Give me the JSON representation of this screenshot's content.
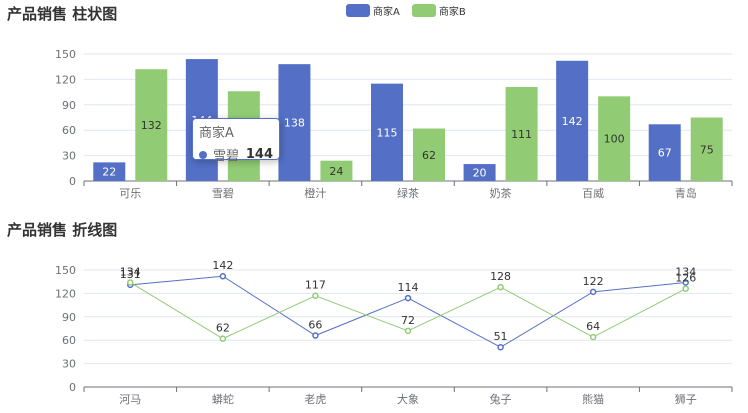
{
  "colors": {
    "seriesA": "#5470c6",
    "seriesB": "#91cc75",
    "axis": "#6e7079",
    "grid": "#e0e6f1",
    "text": "#333333"
  },
  "legend": [
    {
      "name": "商家A",
      "color": "#5470c6"
    },
    {
      "name": "商家B",
      "color": "#91cc75"
    }
  ],
  "tooltip": {
    "series": "商家A",
    "category": "雪碧",
    "value": "144"
  },
  "chart_data": [
    {
      "type": "bar",
      "title": "产品销售 柱状图",
      "categories": [
        "可乐",
        "雪碧",
        "橙汁",
        "绿茶",
        "奶茶",
        "百威",
        "青岛"
      ],
      "series": [
        {
          "name": "商家A",
          "values": [
            22,
            144,
            138,
            115,
            20,
            142,
            67
          ]
        },
        {
          "name": "商家B",
          "values": [
            132,
            106,
            24,
            62,
            111,
            100,
            75
          ]
        }
      ],
      "yticks": [
        0,
        30,
        60,
        90,
        120,
        150
      ],
      "ylim": [
        0,
        150
      ]
    },
    {
      "type": "line",
      "title": "产品销售 折线图",
      "categories": [
        "河马",
        "蟒蛇",
        "老虎",
        "大象",
        "兔子",
        "熊猫",
        "狮子"
      ],
      "series": [
        {
          "name": "商家A",
          "values": [
            131,
            142,
            66,
            114,
            51,
            122,
            134
          ]
        },
        {
          "name": "商家B",
          "values": [
            134,
            62,
            117,
            72,
            128,
            64,
            126
          ]
        }
      ],
      "yticks": [
        0,
        30,
        60,
        90,
        120,
        150
      ],
      "ylim": [
        0,
        150
      ]
    }
  ]
}
